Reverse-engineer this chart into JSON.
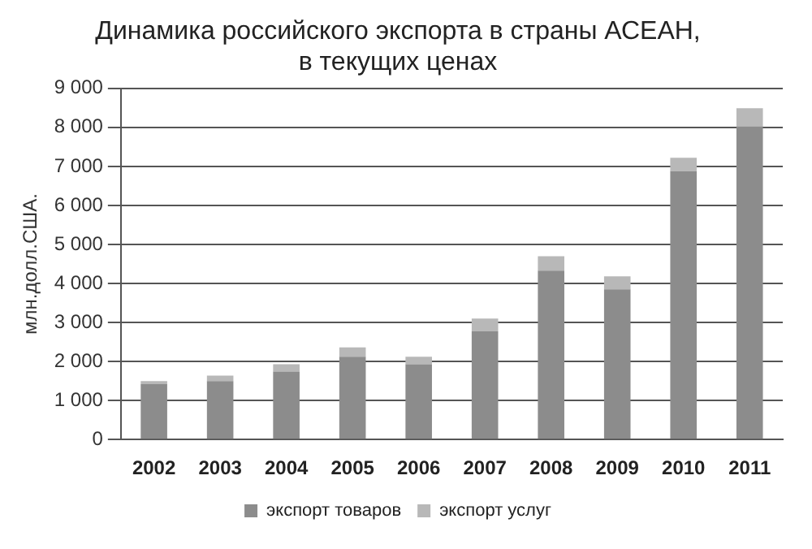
{
  "chart_data": {
    "type": "bar",
    "title": "Динамика российского экспорта в страны АСЕАН,\nв текущих ценах",
    "ylabel": "млн.долл.США.",
    "categories": [
      "2002",
      "2003",
      "2004",
      "2005",
      "2006",
      "2007",
      "2008",
      "2009",
      "2010",
      "2011"
    ],
    "series": [
      {
        "name": "экспорт товаров",
        "color": "#8c8c8c",
        "values": [
          1420,
          1500,
          1740,
          2120,
          1930,
          2770,
          4330,
          3850,
          6880,
          8030
        ]
      },
      {
        "name": "экспорт услуг",
        "color": "#b8b8b8",
        "values": [
          80,
          140,
          190,
          240,
          190,
          330,
          370,
          330,
          340,
          460
        ]
      }
    ],
    "stacked": true,
    "ylim": [
      0,
      9000
    ],
    "yticks": [
      {
        "value": 0,
        "label": "0"
      },
      {
        "value": 1000,
        "label": "1 000"
      },
      {
        "value": 2000,
        "label": "2 000"
      },
      {
        "value": 3000,
        "label": "3 000"
      },
      {
        "value": 4000,
        "label": "4 000"
      },
      {
        "value": 5000,
        "label": "5 000"
      },
      {
        "value": 6000,
        "label": "6 000"
      },
      {
        "value": 7000,
        "label": "7 000"
      },
      {
        "value": 8000,
        "label": "8 000"
      },
      {
        "value": 9000,
        "label": "9 000"
      }
    ],
    "grid": "y",
    "legend": "bottom"
  }
}
